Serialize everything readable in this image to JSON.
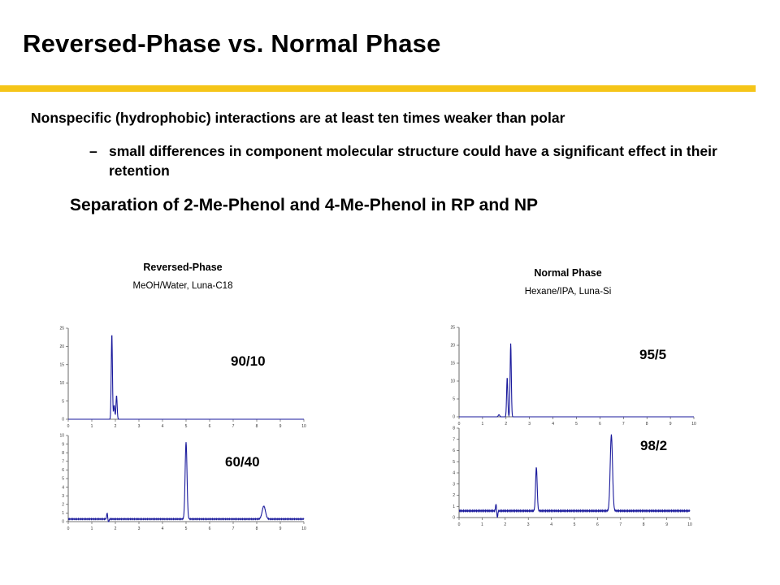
{
  "slide": {
    "title": "Reversed-Phase vs. Normal Phase",
    "accent_color": "#f5c518",
    "bullet": "Nonspecific (hydrophobic) interactions are at least ten times weaker than polar",
    "sub_bullet_marker": "–",
    "sub_bullet": "small differences in component molecular structure could have a significant effect in their retention",
    "subheading": "Separation of 2-Me-Phenol and 4-Me-Phenol in RP and NP"
  },
  "panels": {
    "rp": {
      "title": "Reversed-Phase",
      "conditions": "MeOH/Water,  Luna-C18"
    },
    "np": {
      "title": "Normal Phase",
      "conditions": "Hexane/IPA,  Luna-Si"
    }
  },
  "chart_data": [
    {
      "type": "line",
      "label": "90/10",
      "color": "#1a1a9c",
      "xlim": [
        0,
        10
      ],
      "ylim": [
        0,
        25
      ],
      "xticks": [
        0,
        1,
        2,
        3,
        4,
        5,
        6,
        7,
        8,
        9,
        10
      ],
      "yticks": [
        0,
        5,
        10,
        15,
        20,
        25
      ],
      "peaks": [
        {
          "x": 1.85,
          "height": 23.5,
          "width": 0.025
        },
        {
          "x": 1.95,
          "height": 3.8,
          "width": 0.025
        },
        {
          "x": 2.05,
          "height": 6.5,
          "width": 0.025
        }
      ],
      "baseline": 0
    },
    {
      "type": "line",
      "label": "60/40",
      "color": "#1a1a9c",
      "xlim": [
        0,
        10
      ],
      "ylim": [
        0,
        10
      ],
      "xticks": [
        0,
        1,
        2,
        3,
        4,
        5,
        6,
        7,
        8,
        9,
        10
      ],
      "yticks": [
        0,
        1,
        2,
        3,
        4,
        5,
        6,
        7,
        8,
        9,
        10
      ],
      "peaks": [
        {
          "x": 5.0,
          "height": 8.9,
          "width": 0.04
        },
        {
          "x": 8.3,
          "height": 1.5,
          "width": 0.07
        }
      ],
      "disturbance": {
        "x": 1.65,
        "up": 0.7,
        "down": -0.4
      },
      "baseline": 0.3
    },
    {
      "type": "line",
      "label": "95/5",
      "color": "#1a1a9c",
      "xlim": [
        0,
        10
      ],
      "ylim": [
        0,
        25
      ],
      "xticks": [
        0,
        1,
        2,
        3,
        4,
        5,
        6,
        7,
        8,
        9,
        10
      ],
      "yticks": [
        0,
        5,
        10,
        15,
        20,
        25
      ],
      "peaks": [
        {
          "x": 1.7,
          "height": 0.6,
          "width": 0.03
        },
        {
          "x": 2.05,
          "height": 11.0,
          "width": 0.025
        },
        {
          "x": 2.2,
          "height": 20.5,
          "width": 0.025
        }
      ],
      "baseline": 0
    },
    {
      "type": "line",
      "label": "98/2",
      "color": "#1a1a9c",
      "xlim": [
        0,
        10
      ],
      "ylim": [
        0,
        8
      ],
      "xticks": [
        0,
        1,
        2,
        3,
        4,
        5,
        6,
        7,
        8,
        9,
        10
      ],
      "yticks": [
        0,
        1,
        2,
        3,
        4,
        5,
        6,
        7,
        8
      ],
      "peaks": [
        {
          "x": 3.35,
          "height": 3.9,
          "width": 0.035
        },
        {
          "x": 6.6,
          "height": 6.8,
          "width": 0.05
        }
      ],
      "disturbance": {
        "x": 1.6,
        "up": 0.6,
        "down": -0.6
      },
      "baseline": 0.6
    }
  ]
}
